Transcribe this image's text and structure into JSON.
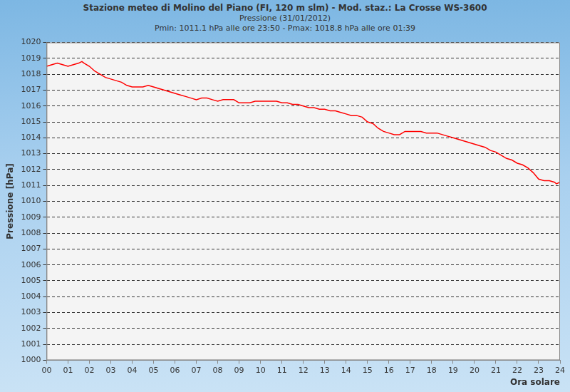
{
  "chart_data": {
    "type": "line",
    "title": "Stazione meteo di Molino del Piano (FI, 120 m slm) - Mod. staz.: La Crosse WS-3600",
    "subtitle": [
      "Pressione (31/01/2012)",
      "Pmin: 1011.1 hPa alle ore 23:50 - Pmax: 1018.8 hPa alle ore 01:39"
    ],
    "x_label": "Ora solare",
    "y_label": "Pressione [hPa]",
    "color": "#ff0000",
    "grid": true,
    "x": [
      0,
      0.25,
      0.5,
      0.75,
      1,
      1.25,
      1.5,
      1.65,
      1.75,
      2,
      2.25,
      2.5,
      2.75,
      3,
      3.25,
      3.5,
      3.75,
      4,
      4.25,
      4.5,
      4.75,
      5,
      5.25,
      5.5,
      5.75,
      6,
      6.25,
      6.5,
      6.75,
      7,
      7.25,
      7.5,
      7.75,
      8,
      8.25,
      8.5,
      8.75,
      9,
      9.25,
      9.5,
      9.75,
      10,
      10.25,
      10.5,
      10.75,
      11,
      11.25,
      11.5,
      11.75,
      12,
      12.25,
      12.5,
      12.75,
      13,
      13.25,
      13.5,
      13.75,
      14,
      14.25,
      14.5,
      14.75,
      15,
      15.25,
      15.5,
      15.75,
      16,
      16.25,
      16.5,
      16.75,
      17,
      17.25,
      17.5,
      17.75,
      18,
      18.25,
      18.5,
      18.75,
      19,
      19.25,
      19.5,
      19.75,
      20,
      20.25,
      20.5,
      20.75,
      21,
      21.25,
      21.5,
      21.75,
      22,
      22.25,
      22.5,
      22.75,
      23,
      23.25,
      23.5,
      23.75,
      23.83,
      24
    ],
    "values": [
      1018.5,
      1018.6,
      1018.7,
      1018.6,
      1018.5,
      1018.6,
      1018.7,
      1018.8,
      1018.7,
      1018.5,
      1018.2,
      1018.0,
      1017.8,
      1017.7,
      1017.6,
      1017.5,
      1017.3,
      1017.2,
      1017.2,
      1017.2,
      1017.3,
      1017.2,
      1017.1,
      1017.0,
      1016.9,
      1016.8,
      1016.7,
      1016.6,
      1016.5,
      1016.4,
      1016.5,
      1016.5,
      1016.4,
      1016.3,
      1016.4,
      1016.4,
      1016.4,
      1016.2,
      1016.2,
      1016.2,
      1016.3,
      1016.3,
      1016.3,
      1016.3,
      1016.3,
      1016.2,
      1016.2,
      1016.1,
      1016.1,
      1016.0,
      1015.9,
      1015.9,
      1015.8,
      1015.8,
      1015.7,
      1015.7,
      1015.6,
      1015.5,
      1015.4,
      1015.4,
      1015.3,
      1015.0,
      1014.9,
      1014.6,
      1014.4,
      1014.3,
      1014.2,
      1014.2,
      1014.4,
      1014.4,
      1014.4,
      1014.4,
      1014.3,
      1014.3,
      1014.3,
      1014.2,
      1014.1,
      1014.0,
      1013.9,
      1013.8,
      1013.7,
      1013.6,
      1013.5,
      1013.4,
      1013.2,
      1013.1,
      1012.9,
      1012.7,
      1012.6,
      1012.4,
      1012.3,
      1012.1,
      1011.8,
      1011.4,
      1011.3,
      1011.3,
      1011.2,
      1011.1,
      1011.2
    ],
    "xlim": [
      0,
      24
    ],
    "xticks": [
      {
        "value": 0,
        "label": "00"
      },
      {
        "value": 1,
        "label": "01"
      },
      {
        "value": 2,
        "label": "02"
      },
      {
        "value": 3,
        "label": "03"
      },
      {
        "value": 4,
        "label": "04"
      },
      {
        "value": 5,
        "label": "05"
      },
      {
        "value": 6,
        "label": "06"
      },
      {
        "value": 7,
        "label": "07"
      },
      {
        "value": 8,
        "label": "08"
      },
      {
        "value": 9,
        "label": "09"
      },
      10,
      11,
      12,
      13,
      14,
      15,
      16,
      17,
      18,
      19,
      20,
      21,
      22,
      23,
      24
    ],
    "ylim": [
      1000,
      1020
    ],
    "yticks": [
      1000,
      1001,
      1002,
      1003,
      1004,
      1005,
      1006,
      1007,
      1008,
      1009,
      1010,
      1011,
      1012,
      1013,
      1014,
      1015,
      1016,
      1017,
      1018,
      1019,
      1020
    ]
  }
}
